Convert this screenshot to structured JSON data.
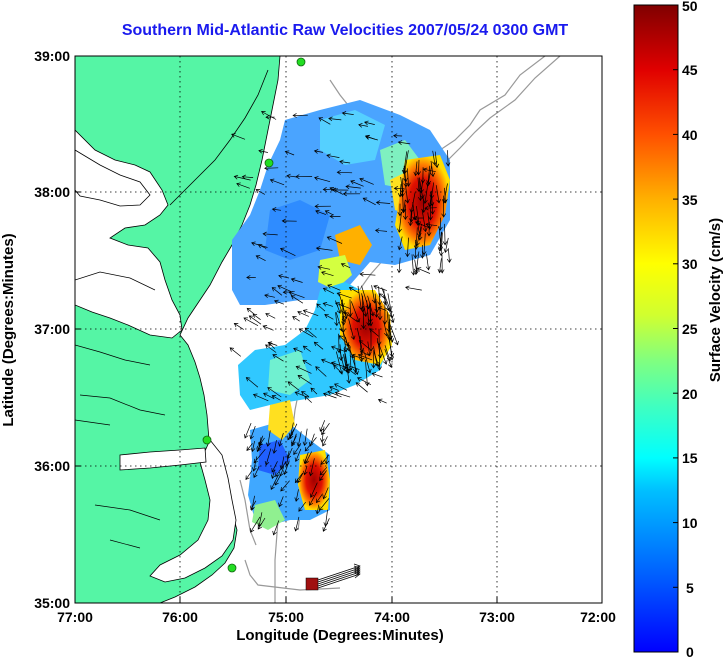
{
  "title": "Southern Mid-Atlantic Raw Velocities 2007/05/24 0300 GMT",
  "axes": {
    "xlabel": "Longitude (Degrees:Minutes)",
    "ylabel": "Latitude (Degrees:Minutes)",
    "x_ticks": [
      "77:00",
      "76:00",
      "75:00",
      "74:00",
      "73:00",
      "72:00"
    ],
    "y_ticks": [
      "39:00",
      "38:00",
      "37:00",
      "36:00",
      "35:00"
    ]
  },
  "colorbar": {
    "label": "Surface Velocity (cm/s)",
    "ticks": [
      "50",
      "45",
      "40",
      "35",
      "30",
      "25",
      "20",
      "15",
      "10",
      "5",
      "0"
    ],
    "range": [
      0,
      50
    ]
  },
  "colors": {
    "land": "#55f5a5",
    "title": "#1a1aee",
    "site": "#22dd22",
    "bathymetry": "#999999"
  },
  "map_data": {
    "lon_range": [
      -77,
      -72
    ],
    "lat_range": [
      35,
      39
    ],
    "grid": "dotted",
    "sites": [
      {
        "lon": -75.1,
        "lat": 38.98
      },
      {
        "lon": -75.4,
        "lat": 38.28
      },
      {
        "lon": -75.95,
        "lat": 36.2
      },
      {
        "lon": -75.5,
        "lat": 35.3
      }
    ]
  }
}
